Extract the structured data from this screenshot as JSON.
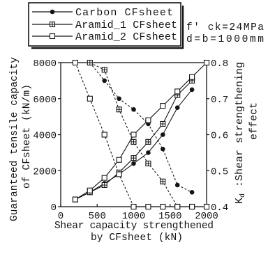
{
  "chart_data": {
    "type": "line",
    "xlabel": [
      "Shear capacity strengthened",
      "by CFsheet (kN)"
    ],
    "ylabel": [
      "Guaranteed tensile capacity",
      "of CFsheet (kN/m)"
    ],
    "y2label": {
      "symbol": "K",
      "subscript": "d",
      "line1": " :Shear strengthening",
      "line2": "effect"
    },
    "xlim": [
      0,
      2000
    ],
    "ylim": [
      0,
      8000
    ],
    "y2lim": [
      0.4,
      0.8
    ],
    "xticks": [
      0,
      500,
      1000,
      1500,
      2000
    ],
    "yticks": [
      0,
      2000,
      4000,
      6000,
      8000
    ],
    "y2ticks": [
      0.4,
      0.5,
      0.6,
      0.7,
      0.8
    ],
    "grid": false,
    "legend_position": "top-left",
    "annotations": [
      "f' ck=24MPa",
      "d=b=1000mm"
    ],
    "colors": {
      "line": "#141414",
      "background": "#ffffff"
    },
    "series": [
      {
        "name": "Carbon CFsheet",
        "marker": "filled-circle",
        "tensile_capacity": {
          "axis": "left",
          "line_style": "solid",
          "x": [
            200,
            400,
            600,
            800,
            1000,
            1200,
            1400,
            1600,
            1800
          ],
          "y": [
            400,
            800,
            1300,
            1800,
            2400,
            3000,
            4000,
            5500,
            6500
          ]
        },
        "kd": {
          "axis": "right",
          "line_style": "dashed",
          "x": [
            400,
            600,
            800,
            1000,
            1200,
            1400,
            1600,
            1800
          ],
          "y": [
            0.8,
            0.75,
            0.7,
            0.67,
            0.63,
            0.56,
            0.46,
            0.44
          ]
        }
      },
      {
        "name": "Aramid_1 CFsheet",
        "marker": "boxed-plus",
        "tensile_capacity": {
          "axis": "left",
          "line_style": "solid",
          "x": [
            200,
            400,
            600,
            800,
            1000,
            1200,
            1400,
            1600,
            1800
          ],
          "y": [
            400,
            800,
            1200,
            1900,
            2700,
            3600,
            4600,
            6200,
            7000
          ]
        },
        "kd": {
          "axis": "right",
          "line_style": "dashed",
          "x": [
            400,
            600,
            800,
            1000,
            1200,
            1400,
            1600,
            1800
          ],
          "y": [
            0.8,
            0.78,
            0.67,
            0.58,
            0.52,
            0.47,
            0.4,
            0.4
          ]
        }
      },
      {
        "name": "Aramid_2 CFsheet",
        "marker": "open-square",
        "tensile_capacity": {
          "axis": "left",
          "line_style": "solid",
          "x": [
            200,
            400,
            600,
            800,
            1000,
            1200,
            1400,
            1600,
            1800,
            2000
          ],
          "y": [
            400,
            900,
            1600,
            2600,
            4000,
            4800,
            5600,
            6400,
            7200,
            8000
          ]
        },
        "kd": {
          "axis": "right",
          "line_style": "dashed",
          "x": [
            200,
            400,
            600,
            800,
            1000,
            1200,
            1400,
            1600,
            1800,
            2000
          ],
          "y": [
            0.8,
            0.7,
            0.6,
            0.49,
            0.4,
            0.4,
            0.4,
            0.4,
            0.4,
            0.4
          ]
        }
      }
    ]
  }
}
